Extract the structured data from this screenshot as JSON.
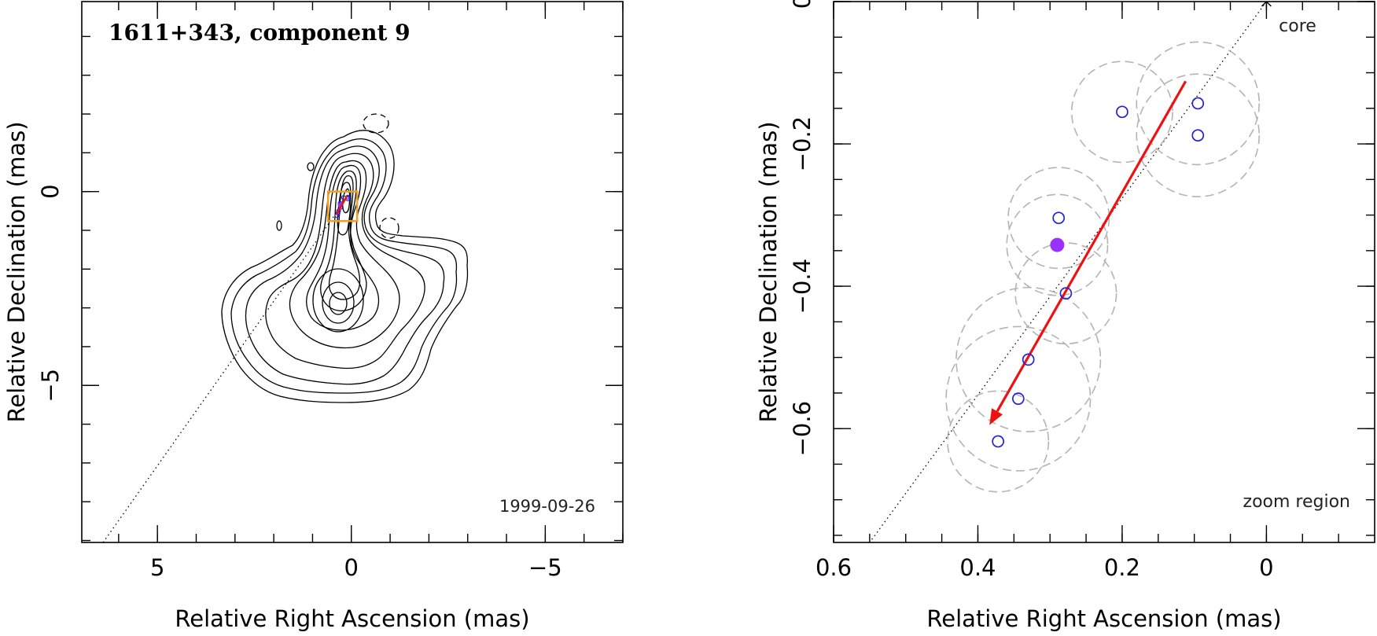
{
  "colors": {
    "component": "#2222dd",
    "highlight": "#9b30ff",
    "arrow": "#ee1111",
    "zoom_box": "#f0a020",
    "uncertainty": "#b4b4b4"
  },
  "chart_data": [
    {
      "type": "scatter",
      "panel": "left",
      "title": "1611+343, component 9",
      "date_label": "1999-09-26",
      "xlabel": "Relative Right Ascension (mas)",
      "ylabel": "Relative Declination (mas)",
      "xlim": [
        6.95,
        -7.0
      ],
      "ylim": [
        -9.05,
        4.9
      ],
      "xticks": [
        5,
        0,
        -5
      ],
      "xtick_labels": [
        "5",
        "0",
        "−5"
      ],
      "yticks": [
        0,
        -5
      ],
      "ytick_labels": [
        "0",
        "−5"
      ],
      "minor_step": 1,
      "contour_map": "VLBI total-intensity contour map with nested contours around the core and the southern jet component",
      "zoom_region": {
        "x_range": [
          0.6,
          -0.15
        ],
        "y_range": [
          -0.76,
          0.0
        ]
      },
      "trajectory_line": {
        "x": [
          6.4,
          0.0
        ],
        "y": [
          -9.05,
          0.0
        ],
        "style": "dotted"
      }
    },
    {
      "type": "scatter",
      "panel": "right",
      "region_label": "zoom region",
      "core_label": "core",
      "xlabel": "Relative Right Ascension (mas)",
      "ylabel": "Relative Declination (mas)",
      "xlim": [
        0.6,
        -0.15
      ],
      "ylim": [
        -0.76,
        0.0
      ],
      "xticks": [
        0.6,
        0.4,
        0.2,
        0.0
      ],
      "xtick_labels": [
        "0.6",
        "0.4",
        "0.2",
        "0"
      ],
      "yticks": [
        0.0,
        -0.2,
        -0.4,
        -0.6
      ],
      "ytick_labels": [
        "0",
        "−0.2",
        "−0.4",
        "−0.6"
      ],
      "core": {
        "x": 0.0,
        "y": 0.0
      },
      "series": [
        {
          "name": "component 9 positions",
          "marker": "open-circle",
          "x": [
            0.095,
            0.095,
            0.2,
            0.288,
            0.278,
            0.33,
            0.344,
            0.372
          ],
          "y": [
            -0.143,
            -0.188,
            -0.155,
            -0.304,
            -0.41,
            -0.503,
            -0.558,
            -0.618
          ],
          "radius": [
            0.085,
            0.085,
            0.07,
            0.07,
            0.07,
            0.1,
            0.1,
            0.07
          ]
        },
        {
          "name": "selected epoch",
          "marker": "filled-circle",
          "x": [
            0.29
          ],
          "y": [
            -0.342
          ],
          "radius": [
            0.07
          ]
        }
      ],
      "arrow": {
        "from": {
          "x": 0.112,
          "y": -0.112
        },
        "to": {
          "x": 0.384,
          "y": -0.595
        }
      },
      "trajectory_line": {
        "x": [
          0.0,
          0.55
        ],
        "y": [
          0.0,
          -0.76
        ],
        "style": "dotted"
      }
    }
  ]
}
